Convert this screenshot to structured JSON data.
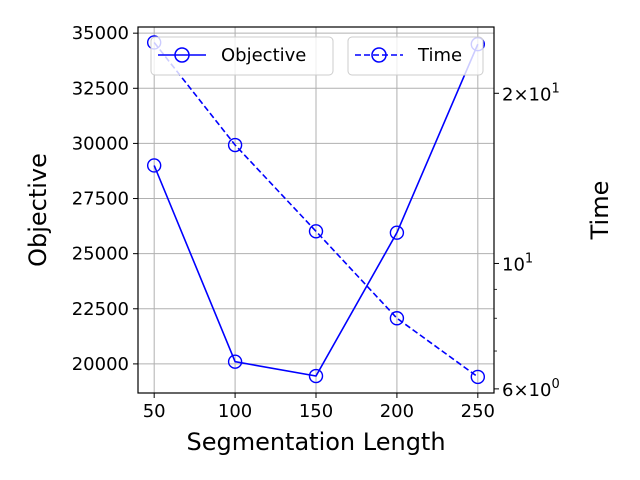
{
  "chart_data": {
    "type": "line",
    "xlabel": "Segmentation Length",
    "ylabel_left": "Objective",
    "ylabel_right": "Time",
    "x": [
      50,
      100,
      150,
      200,
      250
    ],
    "x_ticks": [
      "50",
      "100",
      "150",
      "200",
      "250"
    ],
    "xlim": [
      40,
      260
    ],
    "y_left_ticks": [
      {
        "value": 20000,
        "label": "20000"
      },
      {
        "value": 22500,
        "label": "22500"
      },
      {
        "value": 25000,
        "label": "25000"
      },
      {
        "value": 27500,
        "label": "27500"
      },
      {
        "value": 30000,
        "label": "30000"
      },
      {
        "value": 32500,
        "label": "32500"
      },
      {
        "value": 35000,
        "label": "35000"
      }
    ],
    "ylim_left": [
      18680,
      35280
    ],
    "y_right_scale": "log",
    "y_right_major_ticks": [
      {
        "value": 6,
        "base": "6",
        "times": "×",
        "power": "10",
        "exp": "0"
      },
      {
        "value": 10,
        "base": "",
        "times": "",
        "power": "10",
        "exp": "1"
      },
      {
        "value": 20,
        "base": "2",
        "times": "×",
        "power": "10",
        "exp": "1"
      }
    ],
    "y_right_minor_ticks": [
      7,
      8,
      9
    ],
    "ylim_right": [
      5.9,
      26.2
    ],
    "grid": true,
    "legend_placement": "top",
    "series": [
      {
        "name": "Objective",
        "axis": "left",
        "linestyle": "solid",
        "marker": "circle-open",
        "color": "#0000ff",
        "values": [
          29000,
          20100,
          19450,
          25950,
          34500
        ]
      },
      {
        "name": "Time",
        "axis": "right",
        "linestyle": "dashed",
        "marker": "circle-open",
        "color": "#0000ff",
        "values": [
          24.6,
          16.2,
          11.4,
          8.0,
          6.3
        ]
      }
    ]
  }
}
